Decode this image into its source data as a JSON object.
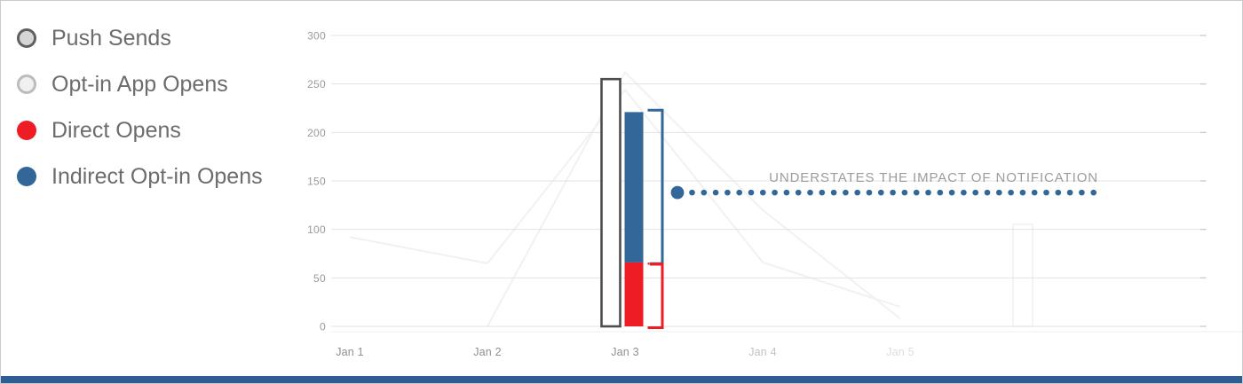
{
  "page": {
    "background": "#ffffff",
    "border_color": "#cbcbcb",
    "footer_color": "#2e5d94"
  },
  "legend": {
    "items": [
      {
        "label": "Push Sends",
        "swatch": "outlined-gray-circle",
        "fill": "#d6d6d6",
        "ring": "#606060"
      },
      {
        "label": "Opt-in App Opens",
        "swatch": "outlined-light-circle",
        "fill": "#f0f0f0",
        "ring": "#bcbcbc"
      },
      {
        "label": "Direct Opens",
        "swatch": "solid-circle",
        "fill": "#ee1c25",
        "ring": null
      },
      {
        "label": "Indirect Opt-in Opens",
        "swatch": "solid-circle",
        "fill": "#336699",
        "ring": null
      }
    ]
  },
  "chart_data": {
    "type": "bar",
    "title": "",
    "xlabel": "",
    "ylabel": "",
    "categories": [
      "Jan 1",
      "Jan 2",
      "Jan 3",
      "Jan 4",
      "Jan 5"
    ],
    "category_colors": [
      "#8f8f8f",
      "#8f8f8f",
      "#8f8f8f",
      "#c3c3c3",
      "#dedede"
    ],
    "ylim": [
      0,
      300
    ],
    "yticks": [
      0,
      50,
      100,
      150,
      200,
      250,
      300
    ],
    "grid": true,
    "legend_position": "left",
    "series": [
      {
        "name": "Push Sends",
        "style": "outlined-bar",
        "stroke": "#4d4d4d",
        "fill": "#ffffff",
        "values": [
          null,
          null,
          255,
          null,
          null
        ]
      },
      {
        "name": "Direct Opens",
        "style": "stacked-bar-bottom",
        "fill": "#ee1c25",
        "values": [
          null,
          null,
          66,
          null,
          null
        ]
      },
      {
        "name": "Indirect Opt-in Opens",
        "style": "stacked-bar-top",
        "fill": "#336699",
        "values": [
          null,
          null,
          155,
          null,
          null
        ]
      }
    ],
    "ghost_series": [
      {
        "name": "opt-in-app-opens-faded",
        "color": "#f1f1f1",
        "values": [
          92,
          65,
          244,
          66,
          20
        ]
      },
      {
        "name": "push-sends-faded",
        "color": "#f1f1f1",
        "values": [
          null,
          0,
          262,
          120,
          8
        ]
      }
    ],
    "brackets": [
      {
        "name": "indirect-opens-bracket",
        "color": "#336699",
        "from": 66,
        "to": 223
      },
      {
        "name": "direct-opens-bracket",
        "color": "#ee1c25",
        "from": 0,
        "to": 64
      }
    ],
    "annotation": {
      "text": "UNDERSTATES THE IMPACT OF NOTIFICATION",
      "y_value": 138,
      "color": "#9c9c9c",
      "dot_color": "#336699"
    }
  }
}
